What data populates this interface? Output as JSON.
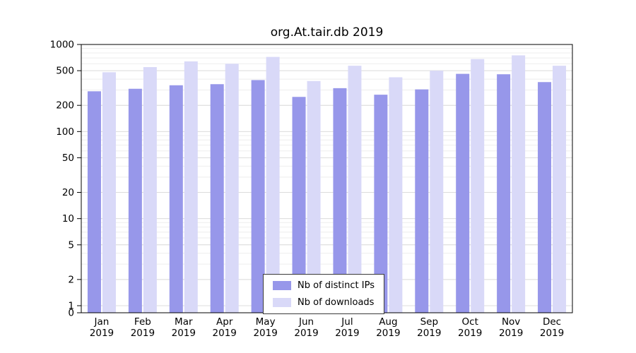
{
  "chart_data": {
    "type": "bar",
    "title": "org.At.tair.db 2019",
    "categories": [
      "Jan",
      "Feb",
      "Mar",
      "Apr",
      "May",
      "Jun",
      "Jul",
      "Aug",
      "Sep",
      "Oct",
      "Nov",
      "Dec"
    ],
    "x_year": "2019",
    "series": [
      {
        "name": "Nb of distinct IPs",
        "color": "#9797ea",
        "values": [
          290,
          310,
          340,
          350,
          390,
          250,
          315,
          265,
          305,
          460,
          455,
          370
        ]
      },
      {
        "name": "Nb of downloads",
        "color": "#d9d9f8",
        "values": [
          480,
          550,
          640,
          600,
          720,
          380,
          570,
          420,
          500,
          680,
          750,
          570
        ]
      }
    ],
    "scale": "log",
    "yticks": [
      0,
      1,
      2,
      5,
      10,
      20,
      50,
      100,
      200,
      500,
      1000
    ],
    "ylim": [
      0,
      1000
    ],
    "grid": true,
    "legend_position": "bottom-center",
    "grid_color_major": "#dcdcdc",
    "grid_color_minor": "#eeeeee",
    "axis_color": "#000000"
  }
}
